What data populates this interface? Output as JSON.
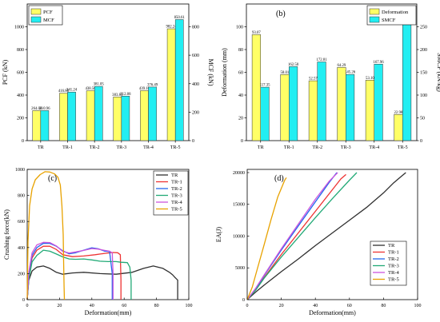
{
  "chart_data": [
    {
      "type": "bar",
      "panel": "(a)",
      "categories": [
        "TR",
        "TR-1",
        "TR-2",
        "TR-3",
        "TR-4",
        "TR-5"
      ],
      "ylabel": "PCF (kN)",
      "y2label": "MCF (kN)",
      "ylim": [
        0,
        1200
      ],
      "y2lim": [
        0,
        960
      ],
      "yticks": [
        0,
        200,
        400,
        600,
        800,
        1000
      ],
      "y2ticks": [
        0,
        200,
        400,
        600,
        800
      ],
      "legend_position": "top-left",
      "series": [
        {
          "name": "PCF",
          "axis": "left",
          "color": "#ffff66",
          "values": [
            264.06,
            416.86,
            438.5,
            383.85,
            439.1,
            982.24
          ],
          "labels": [
            "264.06",
            "416.86",
            "438.50",
            "383.85",
            "439.10",
            "982.24"
          ]
        },
        {
          "name": "MCF",
          "axis": "right",
          "color": "#22eef2",
          "values": [
            210.96,
            341.24,
            381.05,
            312.88,
            376.49,
            850.61
          ],
          "labels": [
            "210.96",
            "341.24",
            "381.05",
            "312.88",
            "376.49",
            "850.61"
          ]
        }
      ]
    },
    {
      "type": "bar",
      "panel": "(b)",
      "categories": [
        "TR",
        "TR-1",
        "TR-2",
        "TR-3",
        "TR-4",
        "TR-5"
      ],
      "ylabel": "Deformation (mm)",
      "y2label": "SMCF (kN/kg)",
      "ylim": [
        0,
        120
      ],
      "y2lim": [
        0,
        300
      ],
      "yticks": [
        0,
        20,
        40,
        60,
        80,
        100
      ],
      "y2ticks": [
        0,
        50,
        100,
        150,
        200,
        250
      ],
      "legend_position": "top-right",
      "series": [
        {
          "name": "Deformation",
          "axis": "left",
          "color": "#ffff66",
          "values": [
            93.07,
            58.01,
            52.57,
            64.29,
            53.1,
            22.98
          ],
          "labels": [
            "93.07",
            "58.01",
            "52.57",
            "64.29",
            "53.10",
            "22.98"
          ]
        },
        {
          "name": "SMCF",
          "axis": "right",
          "color": "#22eef2",
          "values": [
            117.35,
            162.5,
            172.81,
            145.26,
            167.96,
            254.84
          ],
          "labels": [
            "117.35",
            "162.50",
            "172.81",
            "145.26",
            "167.96",
            "254.84"
          ]
        }
      ]
    },
    {
      "type": "line",
      "panel": "(c)",
      "xlabel": "Deformation(mm)",
      "ylabel": "Crushing force(kN)",
      "xlim": [
        0,
        100
      ],
      "ylim": [
        0,
        1000
      ],
      "xticks": [
        0,
        20,
        40,
        60,
        80,
        100
      ],
      "yticks": [
        0,
        200,
        400,
        600,
        800,
        1000
      ],
      "legend_position": "top-right",
      "series": [
        {
          "name": "TR",
          "color": "#303030",
          "x": [
            0,
            1,
            3,
            6,
            10,
            14,
            18,
            22,
            28,
            35,
            45,
            55,
            65,
            72,
            78,
            84,
            88,
            90,
            91.5,
            93.1,
            93.1
          ],
          "y": [
            0,
            150,
            220,
            250,
            258,
            240,
            210,
            195,
            205,
            210,
            200,
            195,
            210,
            240,
            258,
            240,
            210,
            190,
            170,
            150,
            0
          ]
        },
        {
          "name": "TR-1",
          "color": "#ee3333",
          "x": [
            0,
            1,
            3,
            6,
            10,
            14,
            18,
            22,
            28,
            35,
            42,
            48,
            53,
            56,
            57.6,
            58,
            58
          ],
          "y": [
            0,
            180,
            320,
            380,
            410,
            410,
            385,
            345,
            330,
            335,
            345,
            355,
            362,
            360,
            345,
            150,
            0
          ]
        },
        {
          "name": "TR-2",
          "color": "#2266ee",
          "x": [
            0,
            1,
            3,
            6,
            10,
            14,
            18,
            22,
            26,
            30,
            35,
            40,
            44,
            48,
            51,
            52.6,
            52.6
          ],
          "y": [
            0,
            200,
            340,
            400,
            432,
            432,
            410,
            375,
            352,
            360,
            380,
            398,
            390,
            372,
            368,
            200,
            0
          ]
        },
        {
          "name": "TR-3",
          "color": "#22aa77",
          "x": [
            0,
            1,
            3,
            6,
            10,
            14,
            18,
            22,
            26,
            30,
            35,
            40,
            45,
            50,
            55,
            58,
            62,
            63.5,
            64.3,
            64.3
          ],
          "y": [
            0,
            160,
            290,
            340,
            380,
            372,
            350,
            328,
            312,
            310,
            312,
            305,
            295,
            292,
            292,
            287,
            284,
            250,
            150,
            0
          ]
        },
        {
          "name": "TR-4",
          "color": "#cc55dd",
          "x": [
            0,
            1,
            3,
            6,
            10,
            14,
            18,
            22,
            26,
            30,
            35,
            40,
            44,
            48,
            51,
            52.6,
            53.1,
            53.1
          ],
          "y": [
            0,
            210,
            360,
            420,
            440,
            438,
            412,
            370,
            358,
            366,
            378,
            392,
            388,
            378,
            372,
            360,
            200,
            0
          ]
        },
        {
          "name": "TR-5",
          "color": "#e8a200",
          "x": [
            0,
            0.5,
            1.5,
            3,
            5,
            8,
            11,
            14,
            17,
            19,
            20.5,
            21.5,
            22.3,
            22.5,
            22.8,
            23
          ],
          "y": [
            0,
            450,
            720,
            850,
            920,
            960,
            982,
            980,
            965,
            940,
            880,
            720,
            500,
            300,
            100,
            0
          ]
        }
      ]
    },
    {
      "type": "line",
      "panel": "(d)",
      "xlabel": "Deformation(mm)",
      "ylabel": "EA(J)",
      "xlim": [
        0,
        100
      ],
      "ylim": [
        0,
        20500
      ],
      "xticks": [
        0,
        20,
        40,
        60,
        80,
        100
      ],
      "yticks": [
        0,
        5000,
        10000,
        15000,
        20000
      ],
      "legend_position": "bottom-right",
      "series": [
        {
          "name": "TR",
          "color": "#303030",
          "x": [
            0,
            5,
            10,
            20,
            30,
            40,
            50,
            60,
            70,
            80,
            86,
            90,
            93.1
          ],
          "y": [
            0,
            1200,
            2300,
            4400,
            6400,
            8500,
            10500,
            12500,
            14500,
            16800,
            18400,
            19300,
            20000
          ]
        },
        {
          "name": "TR-1",
          "color": "#ee3333",
          "x": [
            0,
            5,
            10,
            20,
            30,
            40,
            50,
            55,
            58
          ],
          "y": [
            0,
            1600,
            3500,
            7100,
            10500,
            13900,
            17300,
            19000,
            19700
          ]
        },
        {
          "name": "TR-2",
          "color": "#2266ee",
          "x": [
            0,
            5,
            10,
            20,
            30,
            40,
            48,
            52.6
          ],
          "y": [
            0,
            1700,
            3800,
            7800,
            11600,
            15400,
            18400,
            20000
          ]
        },
        {
          "name": "TR-3",
          "color": "#22aa77",
          "x": [
            0,
            5,
            10,
            20,
            30,
            40,
            50,
            60,
            64.3
          ],
          "y": [
            0,
            1500,
            3400,
            6700,
            9800,
            12900,
            15900,
            18800,
            20000
          ]
        },
        {
          "name": "TR-4",
          "color": "#cc55dd",
          "x": [
            0,
            5,
            10,
            20,
            30,
            40,
            48,
            53.1
          ],
          "y": [
            0,
            1800,
            3900,
            8000,
            11900,
            15800,
            18600,
            20000
          ]
        },
        {
          "name": "TR-5",
          "color": "#e8a200",
          "x": [
            0,
            3,
            6,
            10,
            14,
            18,
            22,
            23
          ],
          "y": [
            0,
            2000,
            4900,
            8700,
            12600,
            16200,
            18800,
            19200
          ]
        }
      ]
    }
  ]
}
